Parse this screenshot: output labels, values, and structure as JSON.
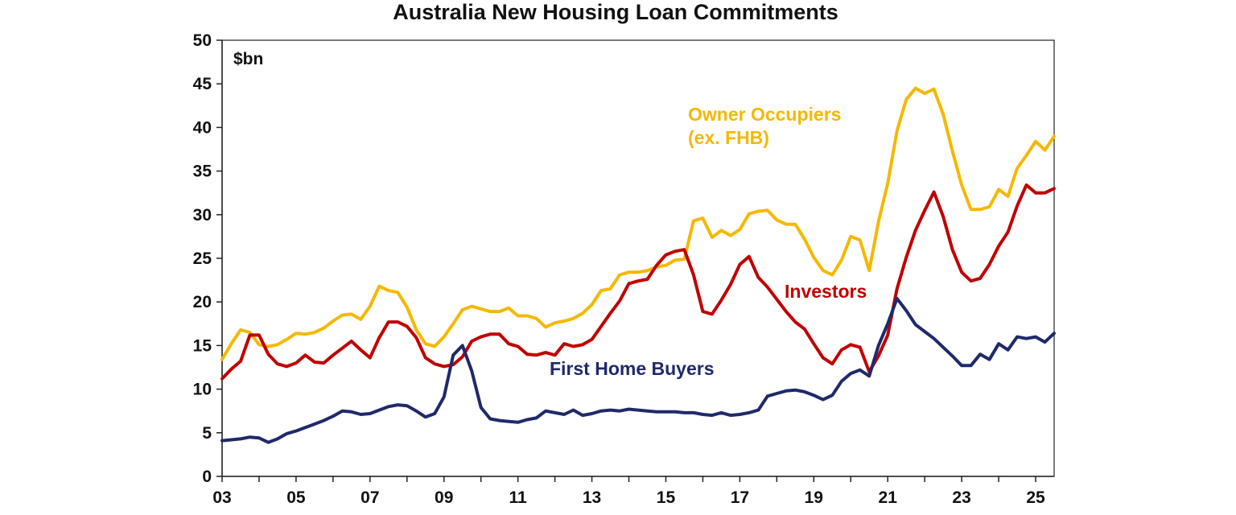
{
  "chart_data": {
    "type": "line",
    "title": "Australia New Housing Loan Commitments",
    "unit_label": "$bn",
    "xlabel": "",
    "ylabel": "",
    "xlim": [
      2003.0,
      2025.5
    ],
    "ylim": [
      0,
      50
    ],
    "y_ticks": [
      0,
      5,
      10,
      15,
      20,
      25,
      30,
      35,
      40,
      45,
      50
    ],
    "x_ticks": [
      2003,
      2005,
      2007,
      2009,
      2011,
      2013,
      2015,
      2017,
      2019,
      2021,
      2023,
      2025
    ],
    "x_tick_labels": [
      "03",
      "05",
      "07",
      "09",
      "11",
      "13",
      "15",
      "17",
      "19",
      "21",
      "23",
      "25"
    ],
    "grid": false,
    "legend": "none (series labelled directly on chart)",
    "series": [
      {
        "name": "Owner Occupiers (ex. FHB)",
        "label_lines": [
          "Owner Occupiers",
          "(ex. FHB)"
        ],
        "color": "#F5B800",
        "x": [
          2003.0,
          2003.25,
          2003.5,
          2003.75,
          2004.0,
          2004.25,
          2004.5,
          2004.75,
          2005.0,
          2005.25,
          2005.5,
          2005.75,
          2006.0,
          2006.25,
          2006.5,
          2006.75,
          2007.0,
          2007.25,
          2007.5,
          2007.75,
          2008.0,
          2008.25,
          2008.5,
          2008.75,
          2009.0,
          2009.25,
          2009.5,
          2009.75,
          2010.0,
          2010.25,
          2010.5,
          2010.75,
          2011.0,
          2011.25,
          2011.5,
          2011.75,
          2012.0,
          2012.25,
          2012.5,
          2012.75,
          2013.0,
          2013.25,
          2013.5,
          2013.75,
          2014.0,
          2014.25,
          2014.5,
          2014.75,
          2015.0,
          2015.25,
          2015.5,
          2015.75,
          2016.0,
          2016.25,
          2016.5,
          2016.75,
          2017.0,
          2017.25,
          2017.5,
          2017.75,
          2018.0,
          2018.25,
          2018.5,
          2018.75,
          2019.0,
          2019.25,
          2019.5,
          2019.75,
          2020.0,
          2020.25,
          2020.5,
          2020.75,
          2021.0,
          2021.25,
          2021.5,
          2021.75,
          2022.0,
          2022.25,
          2022.5,
          2022.75,
          2023.0,
          2023.25,
          2023.5,
          2023.75,
          2024.0,
          2024.25,
          2024.5,
          2024.75,
          2025.0,
          2025.25,
          2025.5
        ],
        "values": [
          13.4,
          15.2,
          16.8,
          16.5,
          15.1,
          14.9,
          15.1,
          15.7,
          16.4,
          16.3,
          16.5,
          17.0,
          17.8,
          18.5,
          18.6,
          18.0,
          19.5,
          21.8,
          21.3,
          21.1,
          19.4,
          16.8,
          15.2,
          14.9,
          16.0,
          17.5,
          19.1,
          19.5,
          19.2,
          18.9,
          18.9,
          19.3,
          18.4,
          18.4,
          18.1,
          17.1,
          17.6,
          17.8,
          18.1,
          18.7,
          19.7,
          21.3,
          21.5,
          23.1,
          23.4,
          23.4,
          23.6,
          24.0,
          24.2,
          24.8,
          24.9,
          29.3,
          29.6,
          27.4,
          28.2,
          27.6,
          28.3,
          30.1,
          30.4,
          30.5,
          29.4,
          28.9,
          28.9,
          27.2,
          25.1,
          23.6,
          23.1,
          24.8,
          27.5,
          27.1,
          23.6,
          29.2,
          33.6,
          39.6,
          43.2,
          44.5,
          43.9,
          44.4,
          41.5,
          37.3,
          33.4,
          30.6,
          30.6,
          30.9,
          32.9,
          32.1,
          35.3,
          36.8,
          38.4,
          37.4,
          39.0
        ]
      },
      {
        "name": "Investors",
        "label_lines": [
          "Investors"
        ],
        "color": "#C00000",
        "x": [
          2003.0,
          2003.25,
          2003.5,
          2003.75,
          2004.0,
          2004.25,
          2004.5,
          2004.75,
          2005.0,
          2005.25,
          2005.5,
          2005.75,
          2006.0,
          2006.25,
          2006.5,
          2006.75,
          2007.0,
          2007.25,
          2007.5,
          2007.75,
          2008.0,
          2008.25,
          2008.5,
          2008.75,
          2009.0,
          2009.25,
          2009.5,
          2009.75,
          2010.0,
          2010.25,
          2010.5,
          2010.75,
          2011.0,
          2011.25,
          2011.5,
          2011.75,
          2012.0,
          2012.25,
          2012.5,
          2012.75,
          2013.0,
          2013.25,
          2013.5,
          2013.75,
          2014.0,
          2014.25,
          2014.5,
          2014.75,
          2015.0,
          2015.25,
          2015.5,
          2015.75,
          2016.0,
          2016.25,
          2016.5,
          2016.75,
          2017.0,
          2017.25,
          2017.5,
          2017.75,
          2018.0,
          2018.25,
          2018.5,
          2018.75,
          2019.0,
          2019.25,
          2019.5,
          2019.75,
          2020.0,
          2020.25,
          2020.5,
          2020.75,
          2021.0,
          2021.25,
          2021.5,
          2021.75,
          2022.0,
          2022.25,
          2022.5,
          2022.75,
          2023.0,
          2023.25,
          2023.5,
          2023.75,
          2024.0,
          2024.25,
          2024.5,
          2024.75,
          2025.0,
          2025.25,
          2025.5
        ],
        "values": [
          11.2,
          12.3,
          13.2,
          16.2,
          16.2,
          14.0,
          12.9,
          12.6,
          13.0,
          13.9,
          13.1,
          13.0,
          13.9,
          14.7,
          15.5,
          14.5,
          13.6,
          15.9,
          17.7,
          17.7,
          17.2,
          15.9,
          13.6,
          12.9,
          12.6,
          12.8,
          13.7,
          15.5,
          16.0,
          16.3,
          16.3,
          15.2,
          14.9,
          14.0,
          13.9,
          14.2,
          13.9,
          15.2,
          14.9,
          15.1,
          15.7,
          17.2,
          18.7,
          20.1,
          22.1,
          22.4,
          22.6,
          24.2,
          25.4,
          25.8,
          26.0,
          23.1,
          18.9,
          18.6,
          20.2,
          22.0,
          24.3,
          25.2,
          22.8,
          21.7,
          20.3,
          18.9,
          17.7,
          16.9,
          15.2,
          13.6,
          12.9,
          14.5,
          15.1,
          14.8,
          12.0,
          13.8,
          16.2,
          21.5,
          25.1,
          28.2,
          30.5,
          32.6,
          29.8,
          26.0,
          23.4,
          22.4,
          22.7,
          24.3,
          26.4,
          28.0,
          31.0,
          33.4,
          32.5,
          32.5,
          33.0
        ]
      },
      {
        "name": "First Home Buyers",
        "label_lines": [
          "First Home Buyers"
        ],
        "color": "#1F2A6B",
        "x": [
          2003.0,
          2003.25,
          2003.5,
          2003.75,
          2004.0,
          2004.25,
          2004.5,
          2004.75,
          2005.0,
          2005.25,
          2005.5,
          2005.75,
          2006.0,
          2006.25,
          2006.5,
          2006.75,
          2007.0,
          2007.25,
          2007.5,
          2007.75,
          2008.0,
          2008.25,
          2008.5,
          2008.75,
          2009.0,
          2009.25,
          2009.5,
          2009.75,
          2010.0,
          2010.25,
          2010.5,
          2010.75,
          2011.0,
          2011.25,
          2011.5,
          2011.75,
          2012.0,
          2012.25,
          2012.5,
          2012.75,
          2013.0,
          2013.25,
          2013.5,
          2013.75,
          2014.0,
          2014.25,
          2014.5,
          2014.75,
          2015.0,
          2015.25,
          2015.5,
          2015.75,
          2016.0,
          2016.25,
          2016.5,
          2016.75,
          2017.0,
          2017.25,
          2017.5,
          2017.75,
          2018.0,
          2018.25,
          2018.5,
          2018.75,
          2019.0,
          2019.25,
          2019.5,
          2019.75,
          2020.0,
          2020.25,
          2020.5,
          2020.75,
          2021.0,
          2021.25,
          2021.5,
          2021.75,
          2022.0,
          2022.25,
          2022.5,
          2022.75,
          2023.0,
          2023.25,
          2023.5,
          2023.75,
          2024.0,
          2024.25,
          2024.5,
          2024.75,
          2025.0,
          2025.25,
          2025.5
        ],
        "values": [
          4.1,
          4.2,
          4.3,
          4.5,
          4.4,
          3.9,
          4.3,
          4.9,
          5.2,
          5.6,
          6.0,
          6.4,
          6.9,
          7.5,
          7.4,
          7.1,
          7.2,
          7.6,
          8.0,
          8.2,
          8.1,
          7.5,
          6.8,
          7.2,
          9.1,
          13.9,
          15.0,
          12.1,
          7.9,
          6.6,
          6.4,
          6.3,
          6.2,
          6.5,
          6.7,
          7.5,
          7.3,
          7.1,
          7.6,
          7.0,
          7.2,
          7.5,
          7.6,
          7.5,
          7.7,
          7.6,
          7.5,
          7.4,
          7.4,
          7.4,
          7.3,
          7.3,
          7.1,
          7.0,
          7.3,
          7.0,
          7.1,
          7.3,
          7.6,
          9.2,
          9.5,
          9.8,
          9.9,
          9.7,
          9.3,
          8.8,
          9.3,
          10.9,
          11.8,
          12.2,
          11.5,
          15.0,
          17.5,
          20.4,
          19.0,
          17.4,
          16.6,
          15.8,
          14.8,
          13.8,
          12.7,
          12.7,
          14.0,
          13.4,
          15.2,
          14.5,
          16.0,
          15.8,
          16.0,
          15.4,
          16.4
        ]
      }
    ]
  }
}
